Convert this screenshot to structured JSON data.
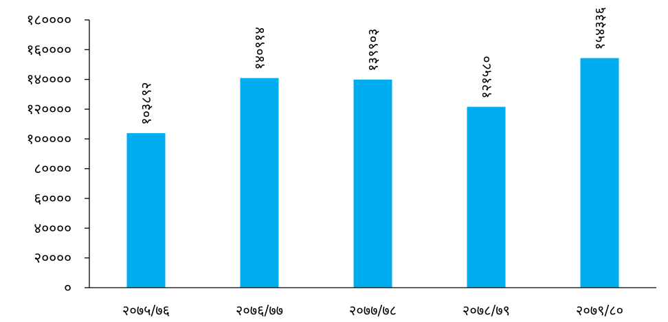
{
  "chart_data": {
    "type": "bar",
    "categories": [
      "२०७५/७६",
      "२०७६/७७",
      "२०७७/७८",
      "२०७८/७९",
      "२०७९/८०"
    ],
    "values": [
      103892,
      140914,
      139903,
      121580,
      154336
    ],
    "data_labels": [
      "१०३८९२",
      "१४०९१४",
      "१३९९०३",
      "१२१५८०",
      "१५४३३६"
    ],
    "ylim": [
      0,
      180000
    ],
    "yticks": [
      0,
      20000,
      40000,
      60000,
      80000,
      100000,
      120000,
      140000,
      160000,
      180000
    ],
    "ytick_labels": [
      "०",
      "२००००",
      "४००००",
      "६००००",
      "८००००",
      "१०००००",
      "१२००००",
      "१४००००",
      "१६००००",
      "१८००००"
    ],
    "title": "",
    "xlabel": "",
    "ylabel": "",
    "grid": false,
    "colors": {
      "bar": "#00AEEF",
      "axis": "#000000",
      "text": "#000000"
    }
  }
}
